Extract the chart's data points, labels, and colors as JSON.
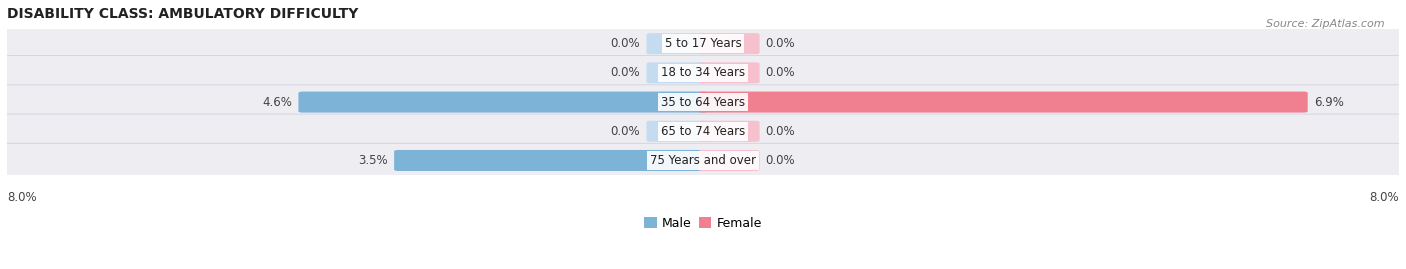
{
  "title": "DISABILITY CLASS: AMBULATORY DIFFICULTY",
  "source": "Source: ZipAtlas.com",
  "categories": [
    "5 to 17 Years",
    "18 to 34 Years",
    "35 to 64 Years",
    "65 to 74 Years",
    "75 Years and over"
  ],
  "male_values": [
    0.0,
    0.0,
    4.6,
    0.0,
    3.5
  ],
  "female_values": [
    0.0,
    0.0,
    6.9,
    0.0,
    0.0
  ],
  "male_color": "#7EB3D8",
  "female_color": "#F08090",
  "male_color_light": "#C5DCF0",
  "female_color_light": "#F7C0CE",
  "row_bg_color": "#EDEDF2",
  "row_bg_color2": "#F5F5F8",
  "x_min": -8.0,
  "x_max": 8.0,
  "x_left_label": "8.0%",
  "x_right_label": "8.0%",
  "legend_male": "Male",
  "legend_female": "Female",
  "title_fontsize": 10,
  "source_fontsize": 8,
  "label_fontsize": 8.5,
  "category_fontsize": 8.5,
  "zero_bar_width": 0.6
}
